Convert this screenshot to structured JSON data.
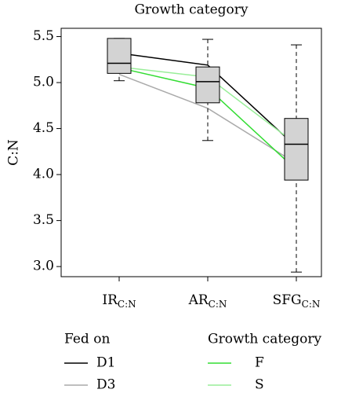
{
  "chart_data": {
    "type": "box",
    "title": "Growth category",
    "y_label": "C:N",
    "categories": [
      {
        "label": "IR",
        "subscript": "C:N"
      },
      {
        "label": "AR",
        "subscript": "C:N"
      },
      {
        "label": "SFG",
        "subscript": "C:N"
      }
    ],
    "boxes": [
      {
        "min": 5.02,
        "q1": 5.1,
        "median": 5.21,
        "q3": 5.48,
        "max": 5.48
      },
      {
        "min": 4.37,
        "q1": 4.78,
        "median": 5.01,
        "q3": 5.17,
        "max": 5.47
      },
      {
        "min": 2.94,
        "q1": 3.94,
        "median": 4.33,
        "q3": 4.61,
        "max": 5.41
      }
    ],
    "box_color": "#d3d3d3",
    "series": [
      {
        "name": "D1",
        "color": "#000000",
        "values": [
          5.32,
          5.19,
          4.3
        ]
      },
      {
        "name": "D3",
        "color": "#aaaaaa",
        "values": [
          5.09,
          4.72,
          4.12
        ]
      },
      {
        "name": "F",
        "color": "#33dd33",
        "values": [
          5.16,
          4.94,
          4.05
        ]
      },
      {
        "name": "S",
        "color": "#99ee99",
        "values": [
          5.17,
          5.06,
          4.33
        ]
      }
    ],
    "legend_titles": [
      "Fed on",
      "Growth category"
    ],
    "ylim": [
      2.89,
      5.59
    ],
    "yticks": [
      {
        "value": 3,
        "label": "3.0"
      },
      {
        "value": 3.5,
        "label": "3.5"
      },
      {
        "value": 4,
        "label": "4.0"
      },
      {
        "value": 4.5,
        "label": "4.5"
      },
      {
        "value": 5,
        "label": "5.0"
      },
      {
        "value": 5.5,
        "label": "5.5"
      }
    ]
  }
}
